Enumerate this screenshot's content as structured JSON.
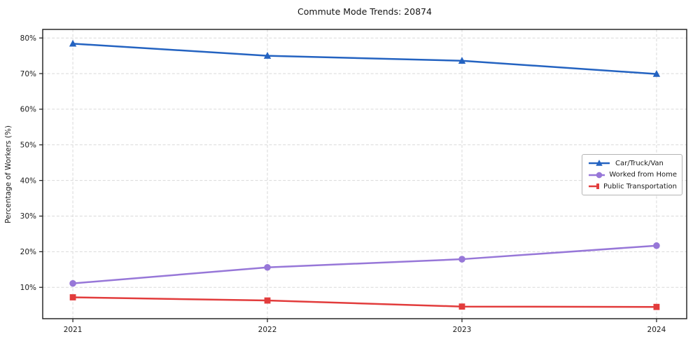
{
  "chart_data": {
    "type": "line",
    "title": "Commute Mode Trends: 20874",
    "xlabel": "",
    "ylabel": "Percentage of Workers (%)",
    "categories": [
      2021,
      2022,
      2023,
      2024
    ],
    "x_tick_labels": [
      "2021",
      "2022",
      "2023",
      "2024"
    ],
    "y_ticks": [
      10,
      20,
      30,
      40,
      50,
      60,
      70,
      80
    ],
    "y_tick_labels": [
      "10%",
      "20%",
      "30%",
      "40%",
      "50%",
      "60%",
      "70%",
      "80%"
    ],
    "xlim": [
      2020.845,
      2024.155
    ],
    "ylim": [
      1.2,
      82.4
    ],
    "grid": true,
    "legend_position": "center-right",
    "series": [
      {
        "name": "Car/Truck/Van",
        "marker": "triangle",
        "color": "#2463c1",
        "values": [
          78.4,
          75.0,
          73.6,
          69.9
        ]
      },
      {
        "name": "Worked from Home",
        "marker": "circle",
        "color": "#9777d8",
        "values": [
          11.1,
          15.6,
          17.9,
          21.7
        ]
      },
      {
        "name": "Public Transportation",
        "marker": "square",
        "color": "#e23c3c",
        "values": [
          7.2,
          6.3,
          4.6,
          4.5
        ]
      }
    ],
    "colors": {
      "grid": "#d9d9d9",
      "axis": "#1a1a1a",
      "background": "#ffffff"
    }
  }
}
